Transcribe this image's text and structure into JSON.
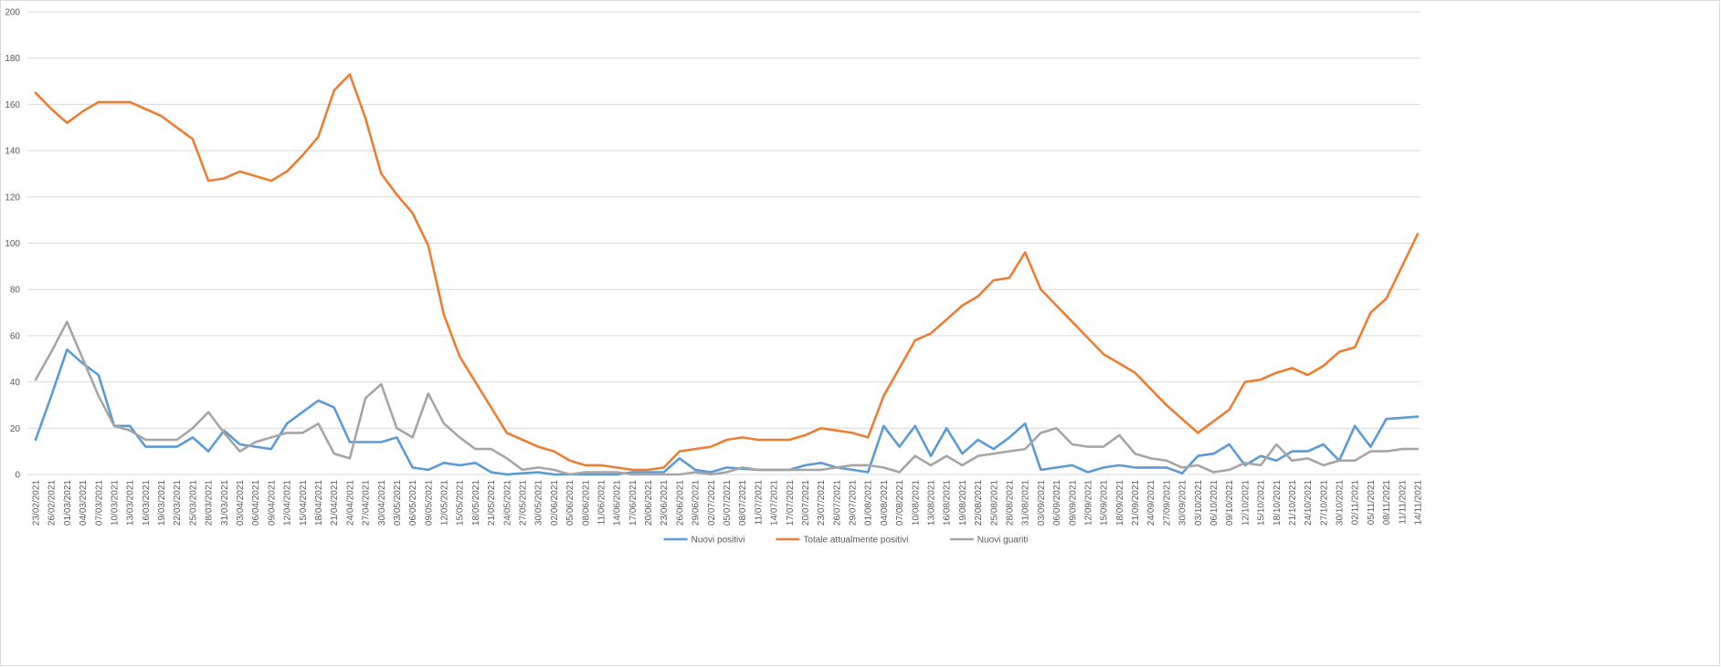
{
  "chart_data": {
    "type": "line",
    "categories": [
      "23/02/2021",
      "26/02/2021",
      "01/03/2021",
      "04/03/2021",
      "07/03/2021",
      "10/03/2021",
      "13/03/2021",
      "16/03/2021",
      "19/03/2021",
      "22/03/2021",
      "25/03/2021",
      "28/03/2021",
      "31/03/2021",
      "03/04/2021",
      "06/04/2021",
      "09/04/2021",
      "12/04/2021",
      "15/04/2021",
      "18/04/2021",
      "21/04/2021",
      "24/04/2021",
      "27/04/2021",
      "30/04/2021",
      "03/05/2021",
      "06/05/2021",
      "09/05/2021",
      "12/05/2021",
      "15/05/2021",
      "18/05/2021",
      "21/05/2021",
      "24/05/2021",
      "27/05/2021",
      "30/05/2021",
      "02/06/2021",
      "05/06/2021",
      "08/06/2021",
      "11/06/2021",
      "14/06/2021",
      "17/06/2021",
      "20/06/2021",
      "23/06/2021",
      "26/06/2021",
      "29/06/2021",
      "02/07/2021",
      "05/07/2021",
      "08/07/2021",
      "11/07/2021",
      "14/07/2021",
      "17/07/2021",
      "20/07/2021",
      "23/07/2021",
      "26/07/2021",
      "29/07/2021",
      "01/08/2021",
      "04/08/2021",
      "07/08/2021",
      "10/08/2021",
      "13/08/2021",
      "16/08/2021",
      "19/08/2021",
      "22/08/2021",
      "25/08/2021",
      "28/08/2021",
      "31/08/2021",
      "03/09/2021",
      "06/09/2021",
      "09/09/2021",
      "12/09/2021",
      "15/09/2021",
      "18/09/2021",
      "21/09/2021",
      "24/09/2021",
      "27/09/2021",
      "30/09/2021",
      "03/10/2021",
      "06/10/2021",
      "09/10/2021",
      "12/10/2021",
      "15/10/2021",
      "18/10/2021",
      "21/10/2021",
      "24/10/2021",
      "27/10/2021",
      "30/10/2021",
      "02/11/2021",
      "05/11/2021",
      "08/11/2021",
      "11/11/2021",
      "14/11/2021"
    ],
    "series": [
      {
        "name": "Nuovi positivi",
        "color": "#5b9bd5",
        "values": [
          15,
          34,
          54,
          48,
          43,
          21,
          21,
          12,
          12,
          12,
          16,
          10,
          19,
          13,
          12,
          11,
          22,
          27,
          32,
          29,
          14,
          14,
          14,
          16,
          3,
          2,
          5,
          4,
          5,
          1,
          0,
          0.5,
          1,
          0,
          0,
          0,
          0,
          0,
          1,
          1,
          1,
          7,
          2,
          1,
          3,
          2.5,
          2,
          2,
          2,
          4,
          5,
          3,
          2,
          1,
          21,
          12,
          21,
          8,
          20,
          9,
          15,
          11,
          16,
          22,
          2,
          3,
          4,
          1,
          3,
          4,
          3,
          3,
          3,
          0.5,
          8,
          9,
          13,
          4,
          8,
          6,
          10,
          10,
          13,
          6,
          21,
          12,
          24,
          24.5,
          25
        ]
      },
      {
        "name": "Totale attualmente positivi",
        "color": "#ed7d31",
        "values": [
          165,
          158,
          152,
          157,
          161,
          161,
          161,
          158,
          155,
          150,
          145,
          127,
          128,
          131,
          129,
          127,
          131,
          138,
          146,
          166,
          173,
          154,
          130,
          121,
          113,
          99,
          69,
          51,
          40,
          29,
          18,
          15,
          12,
          10,
          6,
          4,
          4,
          3,
          2,
          2,
          3,
          10,
          11,
          12,
          15,
          16,
          15,
          15,
          15,
          17,
          20,
          19,
          18,
          16,
          34,
          46,
          58,
          61,
          67,
          73,
          77,
          84,
          85,
          96,
          80,
          73,
          66,
          59,
          52,
          48,
          44,
          37,
          30,
          24,
          18,
          23,
          28,
          40,
          41,
          44,
          46,
          43,
          47,
          53,
          55,
          70,
          76,
          90,
          104
        ]
      },
      {
        "name": "Nuovi guariti",
        "color": "#a5a5a5",
        "values": [
          41,
          53,
          66,
          50,
          34,
          21,
          19,
          15,
          15,
          15,
          20,
          27,
          18,
          10,
          14,
          16,
          18,
          18,
          22,
          9,
          7,
          33,
          39,
          20,
          16,
          35,
          22,
          16,
          11,
          11,
          7,
          2,
          3,
          2,
          0,
          1,
          1,
          1,
          0,
          0,
          0,
          0,
          1,
          0,
          1,
          3,
          2,
          2,
          2,
          2,
          2,
          3,
          4,
          4,
          3,
          1,
          8,
          4,
          8,
          4,
          8,
          9,
          10,
          11,
          18,
          20,
          13,
          12,
          12,
          17,
          9,
          7,
          6,
          3,
          4,
          1,
          2,
          5,
          4,
          13,
          6,
          7,
          4,
          6,
          6,
          10,
          10,
          11,
          11
        ]
      }
    ],
    "ylim": [
      0,
      200
    ],
    "yticks": [
      0,
      20,
      40,
      60,
      80,
      100,
      120,
      140,
      160,
      180,
      200
    ],
    "grid": true,
    "legend": "bottom"
  }
}
